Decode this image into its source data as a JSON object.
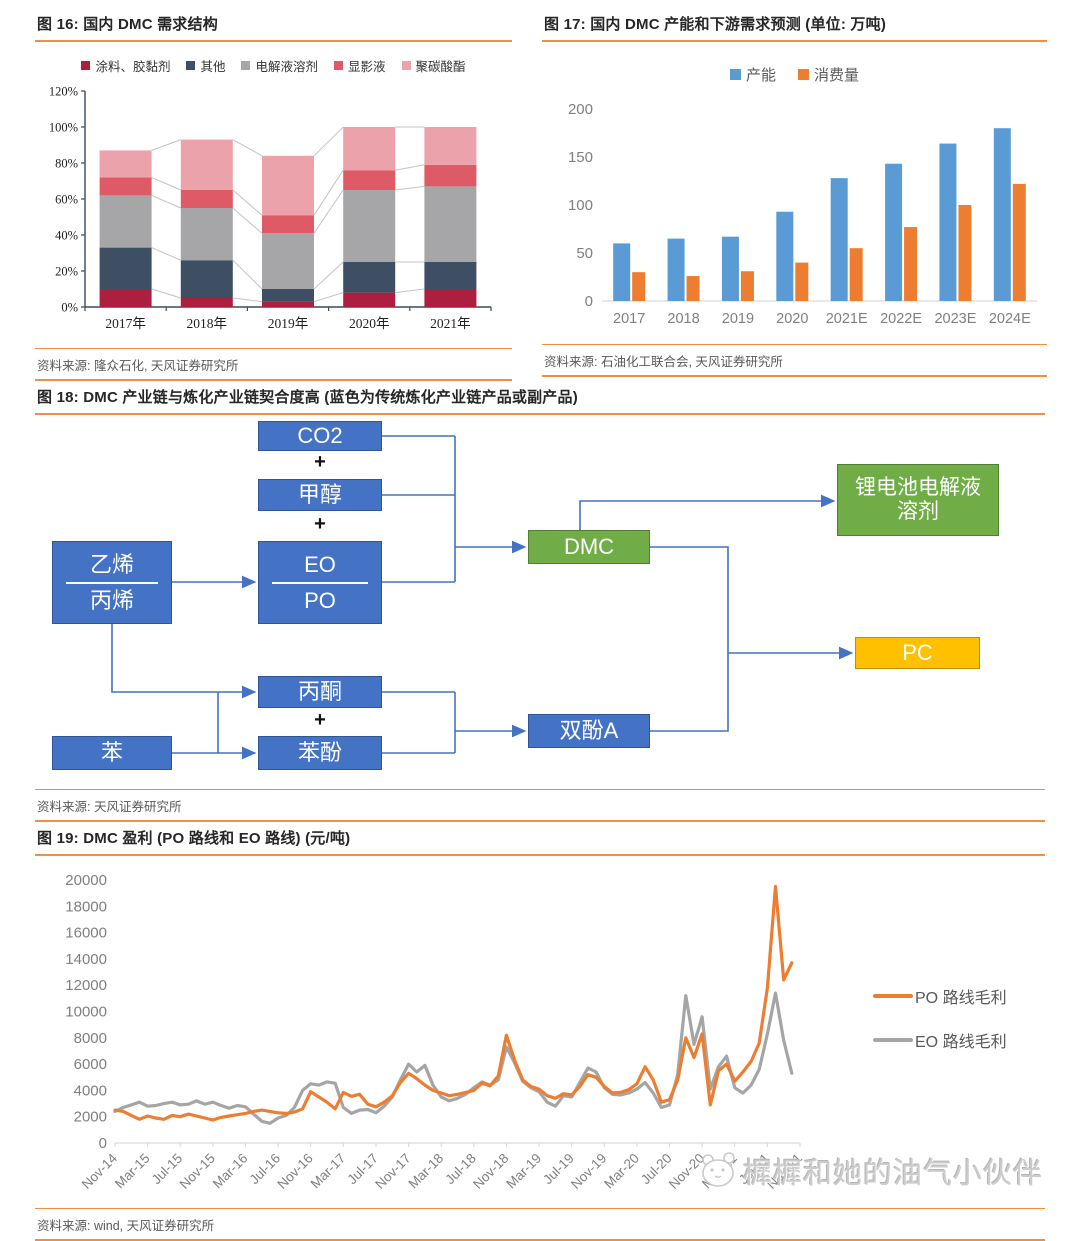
{
  "accent": {
    "rule_orange": "#F08E44",
    "arrow_blue": "#4472C4"
  },
  "fig16": {
    "title": "图 16: 国内 DMC 需求结构",
    "source": "资料来源: 隆众石化, 天风证券研究所"
  },
  "fig17": {
    "title": "图 17: 国内 DMC 产能和下游需求预测 (单位: 万吨)",
    "source": "资料来源: 石油化工联合会, 天风证券研究所"
  },
  "fig18": {
    "title": "图 18: DMC 产业链与炼化产业链契合度高 (蓝色为传统炼化产业链产品或副产品)",
    "source": "资料来源: 天风证券研究所",
    "plus": "+",
    "nodes": {
      "co2": "CO2",
      "methanol": "甲醇",
      "eo": "EO",
      "po": "PO",
      "ethylene": "乙烯",
      "propylene": "丙烯",
      "acetone": "丙酮",
      "phenol": "苯酚",
      "benzene": "苯",
      "dmc": "DMC",
      "electrolyte": "锂电池电解液溶剂",
      "pc": "PC",
      "bpa": "双酚A"
    }
  },
  "fig19": {
    "title": "图 19: DMC 盈利 (PO 路线和 EO 路线) (元/吨)",
    "source": "资料来源: wind, 天风证券研究所"
  },
  "watermark": {
    "text": "樨樨和她的油气小伙伴"
  },
  "chart_data": [
    {
      "id": "chart16",
      "type": "bar",
      "stacked": true,
      "title": "国内 DMC 需求结构",
      "categories": [
        "2017年",
        "2018年",
        "2019年",
        "2020年",
        "2021年"
      ],
      "series": [
        {
          "name": "涂料、胶黏剂",
          "color": "#AD1F3F",
          "values": [
            10,
            5,
            3,
            8,
            10
          ]
        },
        {
          "name": "其他",
          "color": "#3E4F63",
          "values": [
            23,
            21,
            7,
            17,
            15
          ]
        },
        {
          "name": "电解液溶剂",
          "color": "#A6A6A8",
          "values": [
            29,
            29,
            31,
            40,
            42
          ]
        },
        {
          "name": "显影液",
          "color": "#DD5A66",
          "values": [
            10,
            10,
            10,
            11,
            12
          ]
        },
        {
          "name": "聚碳酸酯",
          "color": "#ECA2AA",
          "values": [
            15,
            28,
            33,
            24,
            21
          ]
        }
      ],
      "ylim": [
        0,
        120
      ],
      "ytick_step": 20,
      "ytick_suffix": "%",
      "grid": false,
      "legend_position": "top",
      "connector_color": "#C3C3C3",
      "axis_color": "#3A4A5E"
    },
    {
      "id": "chart17",
      "type": "bar",
      "stacked": false,
      "title": "国内 DMC 产能和下游需求预测 (单位: 万吨)",
      "categories": [
        "2017",
        "2018",
        "2019",
        "2020",
        "2021E",
        "2022E",
        "2023E",
        "2024E"
      ],
      "series": [
        {
          "name": "产能",
          "color": "#5B9BD5",
          "values": [
            60,
            65,
            67,
            93,
            128,
            143,
            164,
            180
          ]
        },
        {
          "name": "消费量",
          "color": "#ED7D31",
          "values": [
            30,
            26,
            31,
            40,
            55,
            77,
            100,
            122
          ]
        }
      ],
      "ylim": [
        0,
        200
      ],
      "ytick_step": 50,
      "grid": false,
      "legend_position": "top",
      "axis_color": "#D9D9D9",
      "label_color": "#7F7F7F"
    },
    {
      "id": "chart19",
      "type": "line",
      "title": "DMC 盈利 (PO 路线和 EO 路线) (元/吨)",
      "x_start": "2014-11",
      "x_step_months": 1,
      "x_tick_every": 4,
      "x_tick_labels": [
        "Nov-14",
        "Mar-15",
        "Jul-15",
        "Nov-15",
        "Mar-16",
        "Jul-16",
        "Nov-16",
        "Mar-17",
        "Jul-17",
        "Nov-17",
        "Mar-18",
        "Jul-18",
        "Nov-18",
        "Mar-19",
        "Jul-19",
        "Nov-19",
        "Mar-20",
        "Jul-20",
        "Nov-20",
        "Mar-21",
        "Jul-21",
        "Nov-21"
      ],
      "series": [
        {
          "name": "PO 路线毛利",
          "color": "#ED7D31",
          "values": [
            2500,
            2400,
            2100,
            1800,
            2050,
            1900,
            1800,
            2100,
            2000,
            2200,
            2050,
            1900,
            1750,
            1950,
            2050,
            2150,
            2250,
            2400,
            2500,
            2400,
            2300,
            2250,
            2350,
            2600,
            3900,
            3500,
            3100,
            2600,
            3850,
            3550,
            3700,
            2950,
            2750,
            3100,
            3600,
            4600,
            5300,
            4900,
            4400,
            4000,
            3800,
            3600,
            3700,
            3850,
            4000,
            4550,
            4350,
            5100,
            8200,
            6300,
            4800,
            4300,
            4100,
            3600,
            3400,
            3750,
            3650,
            4300,
            5200,
            5000,
            4300,
            3800,
            3850,
            4050,
            4500,
            5800,
            4800,
            3100,
            3300,
            4800,
            8000,
            6500,
            8300,
            2900,
            5500,
            6000,
            4700,
            5400,
            6200,
            7600,
            11800,
            19500,
            12400,
            13700
          ]
        },
        {
          "name": "EO 路线毛利",
          "color": "#A5A5A5",
          "values": [
            2400,
            2700,
            2900,
            3100,
            2800,
            2850,
            3000,
            3100,
            2900,
            2950,
            3200,
            2950,
            3100,
            2850,
            2650,
            2850,
            2750,
            2200,
            1650,
            1500,
            1900,
            2100,
            2700,
            4000,
            4500,
            4400,
            4650,
            4550,
            2700,
            2250,
            2500,
            2550,
            2300,
            2800,
            3500,
            4800,
            6000,
            5400,
            5900,
            4400,
            3500,
            3200,
            3400,
            3700,
            4200,
            4650,
            4400,
            4800,
            7300,
            6100,
            4700,
            4200,
            3900,
            3100,
            2800,
            3600,
            3500,
            4600,
            5700,
            5400,
            4200,
            3700,
            3650,
            3800,
            4100,
            4600,
            3800,
            2700,
            2900,
            5200,
            11200,
            7500,
            9600,
            4100,
            5800,
            6600,
            4200,
            3800,
            4400,
            5600,
            8300,
            11400,
            7800,
            5300
          ]
        }
      ],
      "ylim": [
        0,
        20000
      ],
      "ytick_step": 2000,
      "grid": false,
      "legend_position": "right",
      "axis_color": "#D9D9D9",
      "label_color": "#7F7F7F"
    }
  ]
}
